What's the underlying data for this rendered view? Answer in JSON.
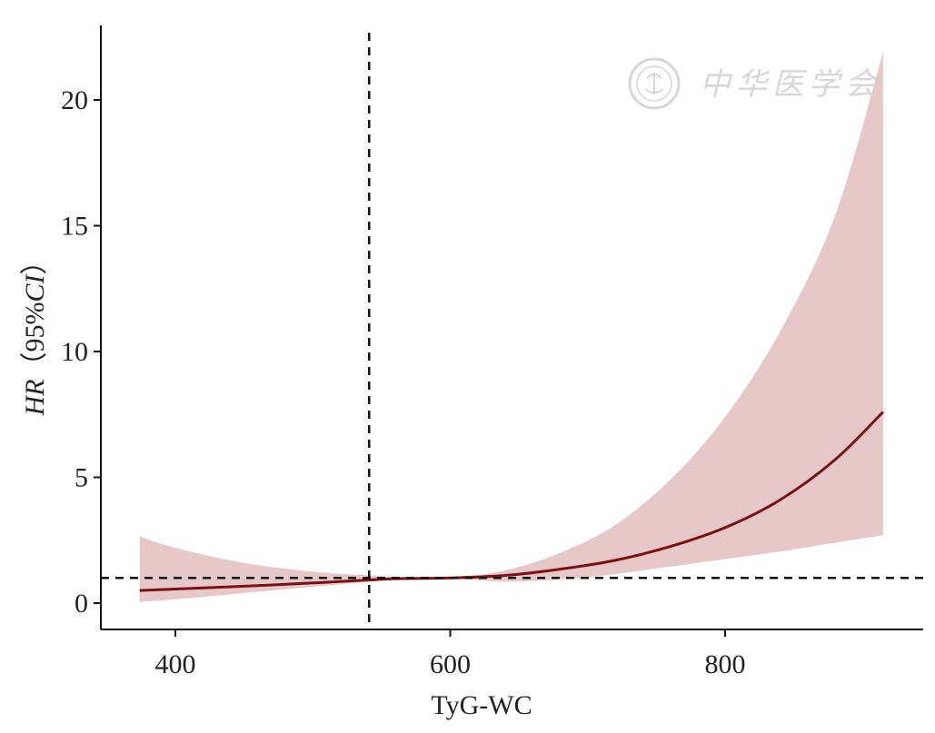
{
  "chart_data": {
    "type": "line",
    "xlabel": "TyG-WC",
    "ylabel_italic": "HR",
    "ylabel_rest": "（95%",
    "ylabel_ci": "CI",
    "ylabel_close": "）",
    "xlim": [
      350,
      1020
    ],
    "ylim": [
      -1,
      22.5
    ],
    "x_ticks": [
      400,
      600,
      800
    ],
    "x_tick_labels": [
      "400",
      "600",
      "800"
    ],
    "y_ticks": [
      0,
      5,
      10,
      15,
      20
    ],
    "y_tick_labels": [
      "0",
      "5",
      "10",
      "15",
      "20"
    ],
    "reference_lines": {
      "hr_reference": 1,
      "cutoff_x": 541
    },
    "grid": false,
    "series": [
      {
        "line_color": "#7a1010",
        "band_color": "#e6c8c9",
        "x": [
          374,
          400,
          450,
          500,
          541,
          560,
          600,
          640,
          680,
          720,
          760,
          800,
          840,
          880,
          915
        ],
        "hr": [
          0.5,
          0.56,
          0.67,
          0.8,
          0.92,
          0.97,
          1.0,
          1.1,
          1.35,
          1.7,
          2.25,
          3.0,
          4.1,
          5.7,
          7.6
        ],
        "lower": [
          0.05,
          0.15,
          0.4,
          0.65,
          0.85,
          0.92,
          0.98,
          0.85,
          0.95,
          1.15,
          1.45,
          1.75,
          2.05,
          2.4,
          2.7
        ],
        "upper": [
          2.65,
          2.2,
          1.6,
          1.25,
          1.1,
          1.05,
          1.03,
          1.3,
          2.0,
          3.1,
          4.9,
          7.4,
          10.8,
          15.4,
          21.9
        ]
      }
    ]
  },
  "watermark": {
    "text": "中华医学会",
    "seal_icon": "society-seal-icon"
  }
}
